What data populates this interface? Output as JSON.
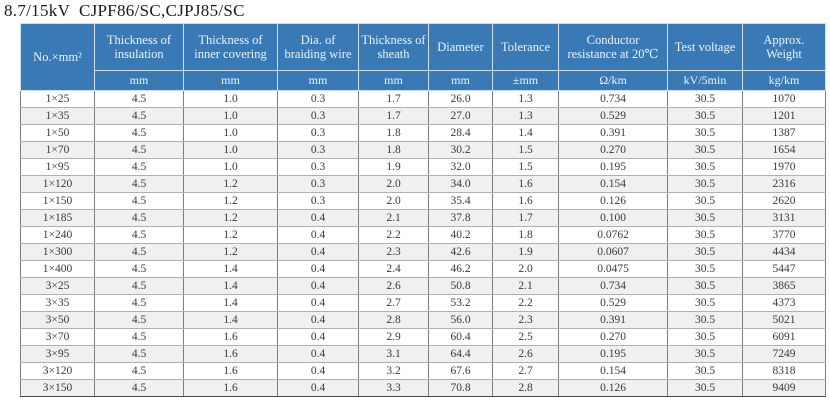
{
  "title": "8.7/15kV  CJPF86/SC,CJPJ85/SC",
  "colors": {
    "header_bg": "#3979b6",
    "header_text": "#eef4fb",
    "row_stripe": "#f0f0f0",
    "body_text": "#3a3a3a"
  },
  "table": {
    "columns": [
      {
        "label": "No.×mm²",
        "unit": ""
      },
      {
        "label": "Thickness of insulation",
        "unit": "mm"
      },
      {
        "label": "Thickness of inner covering",
        "unit": "mm"
      },
      {
        "label": "Dia. of braiding wire",
        "unit": "mm"
      },
      {
        "label": "Thickness of sheath",
        "unit": "mm"
      },
      {
        "label": "Diameter",
        "unit": "mm"
      },
      {
        "label": "Tolerance",
        "unit": "±mm"
      },
      {
        "label": "Conductor resistance at 20℃",
        "unit": "Ω/km"
      },
      {
        "label": "Test voltage",
        "unit": "kV/5min"
      },
      {
        "label": "Approx. Weight",
        "unit": "kg/km"
      }
    ],
    "rows": [
      [
        "1×25",
        "4.5",
        "1.0",
        "0.3",
        "1.7",
        "26.0",
        "1.3",
        "0.734",
        "30.5",
        "1070"
      ],
      [
        "1×35",
        "4.5",
        "1.0",
        "0.3",
        "1.7",
        "27.0",
        "1.3",
        "0.529",
        "30.5",
        "1201"
      ],
      [
        "1×50",
        "4.5",
        "1.0",
        "0.3",
        "1.8",
        "28.4",
        "1.4",
        "0.391",
        "30.5",
        "1387"
      ],
      [
        "1×70",
        "4.5",
        "1.0",
        "0.3",
        "1.8",
        "30.2",
        "1.5",
        "0.270",
        "30.5",
        "1654"
      ],
      [
        "1×95",
        "4.5",
        "1.0",
        "0.3",
        "1.9",
        "32.0",
        "1.5",
        "0.195",
        "30.5",
        "1970"
      ],
      [
        "1×120",
        "4.5",
        "1.2",
        "0.3",
        "2.0",
        "34.0",
        "1.6",
        "0.154",
        "30.5",
        "2316"
      ],
      [
        "1×150",
        "4.5",
        "1.2",
        "0.3",
        "2.0",
        "35.4",
        "1.6",
        "0.126",
        "30.5",
        "2620"
      ],
      [
        "1×185",
        "4.5",
        "1.2",
        "0.4",
        "2.1",
        "37.8",
        "1.7",
        "0.100",
        "30.5",
        "3131"
      ],
      [
        "1×240",
        "4.5",
        "1.2",
        "0.4",
        "2.2",
        "40.2",
        "1.8",
        "0.0762",
        "30.5",
        "3770"
      ],
      [
        "1×300",
        "4.5",
        "1.2",
        "0.4",
        "2.3",
        "42.6",
        "1.9",
        "0.0607",
        "30.5",
        "4434"
      ],
      [
        "1×400",
        "4.5",
        "1.4",
        "0.4",
        "2.4",
        "46.2",
        "2.0",
        "0.0475",
        "30.5",
        "5447"
      ],
      [
        "3×25",
        "4.5",
        "1.4",
        "0.4",
        "2.6",
        "50.8",
        "2.1",
        "0.734",
        "30.5",
        "3865"
      ],
      [
        "3×35",
        "4.5",
        "1.4",
        "0.4",
        "2.7",
        "53.2",
        "2.2",
        "0.529",
        "30.5",
        "4373"
      ],
      [
        "3×50",
        "4.5",
        "1.4",
        "0.4",
        "2.8",
        "56.0",
        "2.3",
        "0.391",
        "30.5",
        "5021"
      ],
      [
        "3×70",
        "4.5",
        "1.6",
        "0.4",
        "2.9",
        "60.4",
        "2.5",
        "0.270",
        "30.5",
        "6091"
      ],
      [
        "3×95",
        "4.5",
        "1.6",
        "0.4",
        "3.1",
        "64.4",
        "2.6",
        "0.195",
        "30.5",
        "7249"
      ],
      [
        "3×120",
        "4.5",
        "1.6",
        "0.4",
        "3.2",
        "67.6",
        "2.7",
        "0.154",
        "30.5",
        "8318"
      ],
      [
        "3×150",
        "4.5",
        "1.6",
        "0.4",
        "3.3",
        "70.8",
        "2.8",
        "0.126",
        "30.5",
        "9409"
      ]
    ]
  }
}
